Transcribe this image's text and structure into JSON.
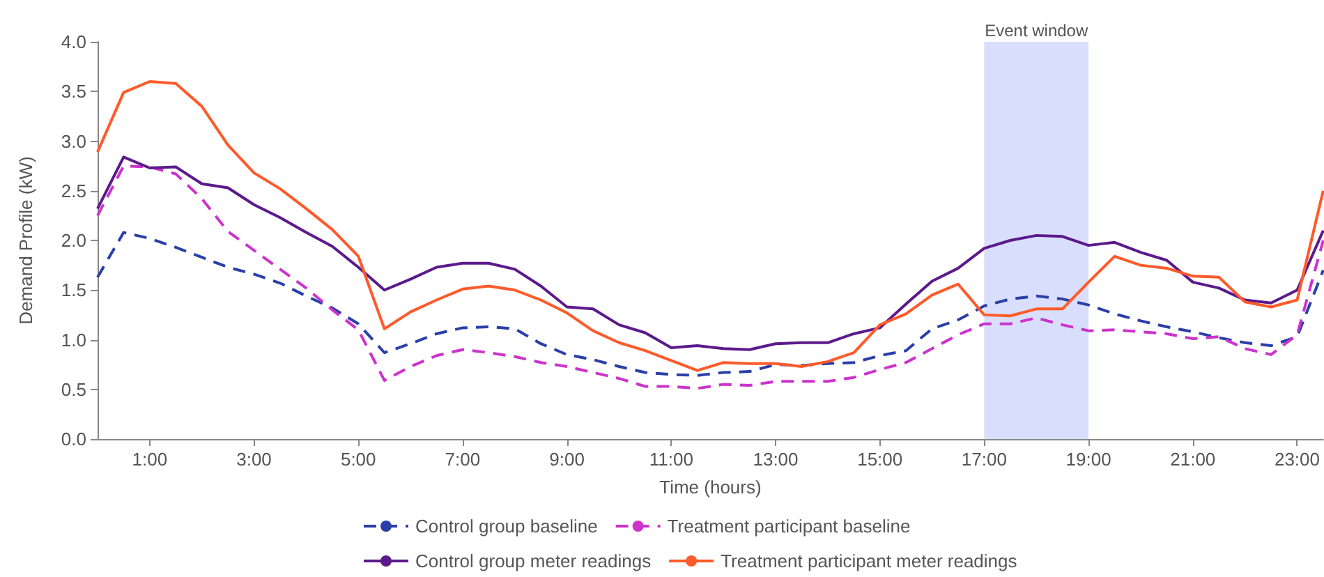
{
  "chart_data": {
    "type": "line",
    "xlabel": "Time (hours)",
    "ylabel": "Demand Profile (kW)",
    "x": [
      0,
      0.5,
      1,
      1.5,
      2,
      2.5,
      3,
      3.5,
      4,
      4.5,
      5,
      5.5,
      6,
      6.5,
      7,
      7.5,
      8,
      8.5,
      9,
      9.5,
      10,
      10.5,
      11,
      11.5,
      12,
      12.5,
      13,
      13.5,
      14,
      14.5,
      15,
      15.5,
      16,
      16.5,
      17,
      17.5,
      18,
      18.5,
      19,
      19.5,
      20,
      20.5,
      21,
      21.5,
      22,
      22.5,
      23,
      23.5
    ],
    "xlim": [
      0,
      23.5
    ],
    "xticks": [
      {
        "value": 1,
        "label": "1:00"
      },
      {
        "value": 3,
        "label": "3:00"
      },
      {
        "value": 5,
        "label": "5:00"
      },
      {
        "value": 7,
        "label": "7:00"
      },
      {
        "value": 9,
        "label": "9:00"
      },
      {
        "value": 11,
        "label": "11:00"
      },
      {
        "value": 13,
        "label": "13:00"
      },
      {
        "value": 15,
        "label": "15:00"
      },
      {
        "value": 17,
        "label": "17:00"
      },
      {
        "value": 19,
        "label": "19:00"
      },
      {
        "value": 21,
        "label": "21:00"
      },
      {
        "value": 23,
        "label": "23:00"
      }
    ],
    "ylim": [
      0,
      4
    ],
    "yticks": [
      {
        "value": 0,
        "label": "0.0"
      },
      {
        "value": 0.5,
        "label": "0.5"
      },
      {
        "value": 1,
        "label": "1.0"
      },
      {
        "value": 1.5,
        "label": "1.5"
      },
      {
        "value": 2,
        "label": "2.0"
      },
      {
        "value": 2.5,
        "label": "2.5"
      },
      {
        "value": 3,
        "label": "3.0"
      },
      {
        "value": 3.5,
        "label": "3.5"
      },
      {
        "value": 4,
        "label": "4.0"
      }
    ],
    "grid": false,
    "legend": "bottom",
    "marker": "none",
    "bands": [
      {
        "axis": "x",
        "from": 17,
        "to": 19,
        "label": "Event window",
        "color": "#d9defc"
      }
    ],
    "series": [
      {
        "name": "Control group baseline",
        "color": "#2a3fa8",
        "line_style": "dashed",
        "values": [
          1.63,
          2.08,
          2.02,
          1.93,
          1.83,
          1.73,
          1.66,
          1.57,
          1.44,
          1.32,
          1.16,
          0.87,
          0.96,
          1.06,
          1.12,
          1.13,
          1.11,
          0.96,
          0.85,
          0.8,
          0.73,
          0.67,
          0.65,
          0.64,
          0.67,
          0.68,
          0.75,
          0.74,
          0.76,
          0.77,
          0.84,
          0.89,
          1.11,
          1.2,
          1.34,
          1.41,
          1.44,
          1.41,
          1.35,
          1.26,
          1.19,
          1.13,
          1.08,
          1.02,
          0.97,
          0.94,
          1.03,
          1.7
        ]
      },
      {
        "name": "Treatment participant baseline",
        "color": "#cc33cc",
        "line_style": "dashed",
        "values": [
          2.25,
          2.75,
          2.74,
          2.67,
          2.42,
          2.09,
          1.9,
          1.71,
          1.52,
          1.3,
          1.1,
          0.59,
          0.73,
          0.84,
          0.9,
          0.87,
          0.83,
          0.77,
          0.73,
          0.67,
          0.61,
          0.53,
          0.53,
          0.51,
          0.55,
          0.54,
          0.58,
          0.58,
          0.58,
          0.62,
          0.7,
          0.77,
          0.91,
          1.05,
          1.16,
          1.16,
          1.22,
          1.15,
          1.09,
          1.1,
          1.08,
          1.06,
          1.01,
          1.03,
          0.91,
          0.85,
          1.05,
          2.0
        ]
      },
      {
        "name": "Control group meter readings",
        "color": "#5b1a8c",
        "line_style": "solid",
        "values": [
          2.32,
          2.84,
          2.73,
          2.74,
          2.57,
          2.53,
          2.36,
          2.23,
          2.08,
          1.94,
          1.73,
          1.5,
          1.61,
          1.73,
          1.77,
          1.77,
          1.71,
          1.54,
          1.33,
          1.31,
          1.15,
          1.07,
          0.92,
          0.94,
          0.91,
          0.9,
          0.96,
          0.97,
          0.97,
          1.06,
          1.12,
          1.36,
          1.59,
          1.72,
          1.92,
          2.0,
          2.05,
          2.04,
          1.95,
          1.98,
          1.88,
          1.8,
          1.58,
          1.52,
          1.4,
          1.37,
          1.5,
          2.1
        ]
      },
      {
        "name": "Treatment participant meter readings",
        "color": "#ff5a2a",
        "line_style": "solid",
        "values": [
          2.89,
          3.49,
          3.6,
          3.58,
          3.35,
          2.96,
          2.68,
          2.52,
          2.32,
          2.11,
          1.84,
          1.11,
          1.28,
          1.4,
          1.51,
          1.54,
          1.5,
          1.4,
          1.27,
          1.09,
          0.97,
          0.89,
          0.79,
          0.69,
          0.77,
          0.76,
          0.76,
          0.73,
          0.78,
          0.87,
          1.15,
          1.26,
          1.45,
          1.56,
          1.25,
          1.24,
          1.31,
          1.31,
          1.58,
          1.84,
          1.75,
          1.72,
          1.64,
          1.63,
          1.38,
          1.33,
          1.4,
          2.5
        ]
      }
    ]
  }
}
